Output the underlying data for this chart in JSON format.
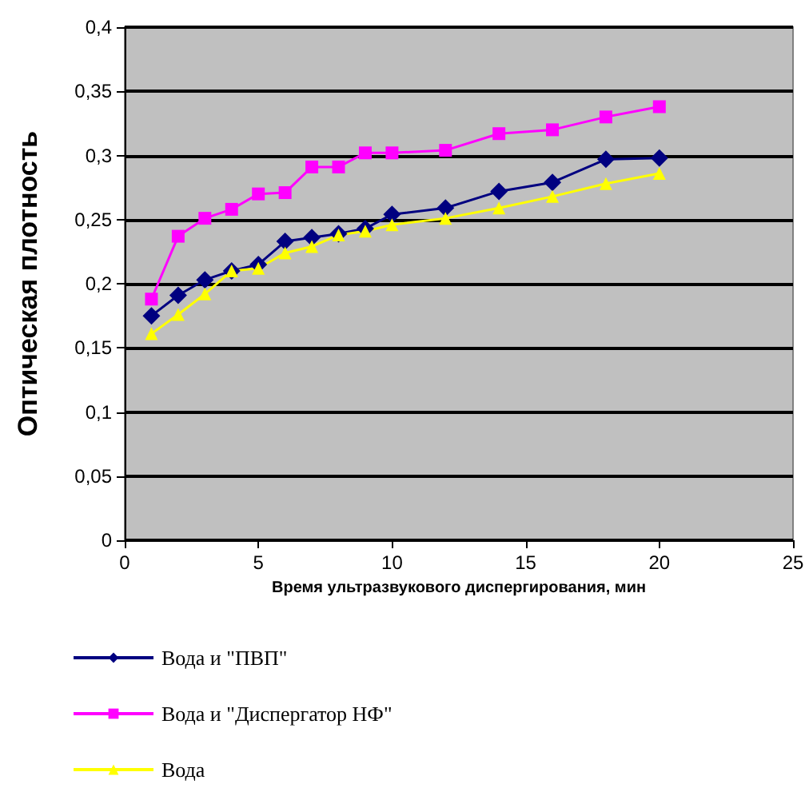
{
  "chart_data": {
    "type": "line",
    "xlabel": "Время ультразвукового диспергирования, мин",
    "ylabel": "Оптическая плотность",
    "x": [
      1,
      2,
      3,
      4,
      5,
      6,
      7,
      8,
      9,
      10,
      12,
      14,
      16,
      18,
      20
    ],
    "series": [
      {
        "name": "Вода и \"ПВП\"",
        "color": "#000080",
        "marker": "diamond",
        "values": [
          0.175,
          0.191,
          0.203,
          0.21,
          0.215,
          0.233,
          0.236,
          0.239,
          0.243,
          0.254,
          0.259,
          0.272,
          0.279,
          0.297,
          0.298
        ]
      },
      {
        "name": "Вода и \"Диспергатор НФ\"",
        "color": "#ff00ff",
        "marker": "square",
        "values": [
          0.188,
          0.237,
          0.251,
          0.258,
          0.27,
          0.271,
          0.291,
          0.291,
          0.302,
          0.302,
          0.304,
          0.317,
          0.32,
          0.33,
          0.338
        ]
      },
      {
        "name": "Вода",
        "color": "#ffff00",
        "marker": "triangle",
        "values": [
          0.161,
          0.176,
          0.192,
          0.21,
          0.212,
          0.224,
          0.229,
          0.238,
          0.241,
          0.246,
          0.251,
          0.259,
          0.268,
          0.278,
          0.286
        ]
      }
    ],
    "xlim": [
      0,
      25
    ],
    "xticks": [
      0,
      5,
      10,
      15,
      20,
      25
    ],
    "ylim": [
      0,
      0.4
    ],
    "yticks": [
      0,
      {
        "value": 0.05,
        "label": "0,05"
      },
      {
        "value": 0.1,
        "label": "0,1"
      },
      {
        "value": 0.15,
        "label": "0,15"
      },
      {
        "value": 0.2,
        "label": "0,2"
      },
      {
        "value": 0.25,
        "label": "0,25"
      },
      {
        "value": 0.3,
        "label": "0,3"
      },
      {
        "value": 0.35,
        "label": "0,35"
      },
      {
        "value": 0.4,
        "label": "0,4"
      }
    ],
    "grid": "y",
    "legend": "bottom",
    "line_style": "solid"
  }
}
